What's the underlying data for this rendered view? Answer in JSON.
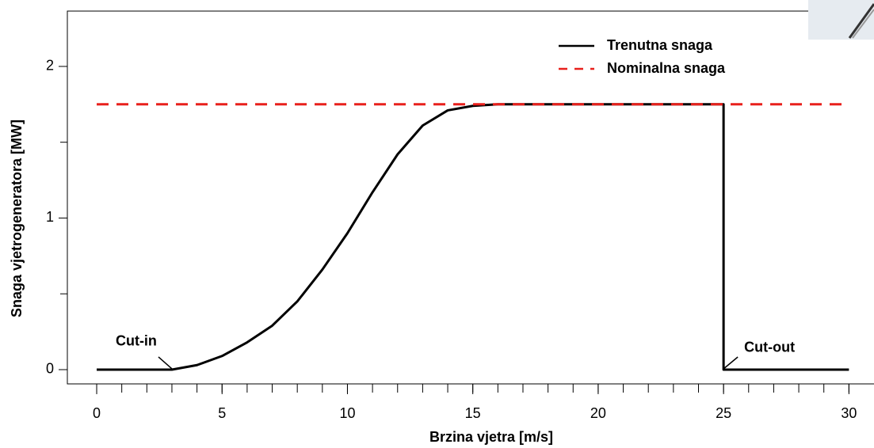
{
  "chart_data": {
    "type": "line",
    "x_label": "Brzina vjetra [m/s]",
    "y_label": "Snaga vjetrogeneratora [MW]",
    "xlim": [
      -1.17,
      31
    ],
    "ylim": [
      -0.094,
      2.365
    ],
    "xticks": [
      0,
      5,
      10,
      15,
      20,
      25,
      30
    ],
    "xminorticks": [
      0,
      1,
      2,
      3,
      4,
      5,
      6,
      7,
      8,
      9,
      10,
      11,
      12,
      13,
      14,
      15,
      16,
      17,
      18,
      19,
      20,
      21,
      22,
      23,
      24,
      25,
      26,
      27,
      28,
      29,
      30
    ],
    "yticks": [
      0,
      1,
      2
    ],
    "yminorticks": [
      0.5,
      1.5
    ],
    "legend": "upper right",
    "series": [
      {
        "name": "Trenutna snaga",
        "color": "#000000",
        "dash": false,
        "x": [
          0,
          3,
          4,
          5,
          6,
          7,
          8,
          9,
          10,
          11,
          12,
          13,
          14,
          15,
          16,
          25,
          25,
          30
        ],
        "values": [
          0,
          0,
          0.03,
          0.09,
          0.18,
          0.29,
          0.45,
          0.66,
          0.9,
          1.17,
          1.42,
          1.61,
          1.71,
          1.74,
          1.75,
          1.75,
          0,
          0
        ]
      },
      {
        "name": "Nominalna snaga",
        "color": "#e8201c",
        "dash": true,
        "x": [
          0,
          30
        ],
        "values": [
          1.75,
          1.75
        ]
      }
    ],
    "annotations": [
      {
        "text": "Cut-in",
        "x": 3,
        "y": 0
      },
      {
        "text": "Cut-out",
        "x": 25,
        "y": 0
      }
    ]
  }
}
